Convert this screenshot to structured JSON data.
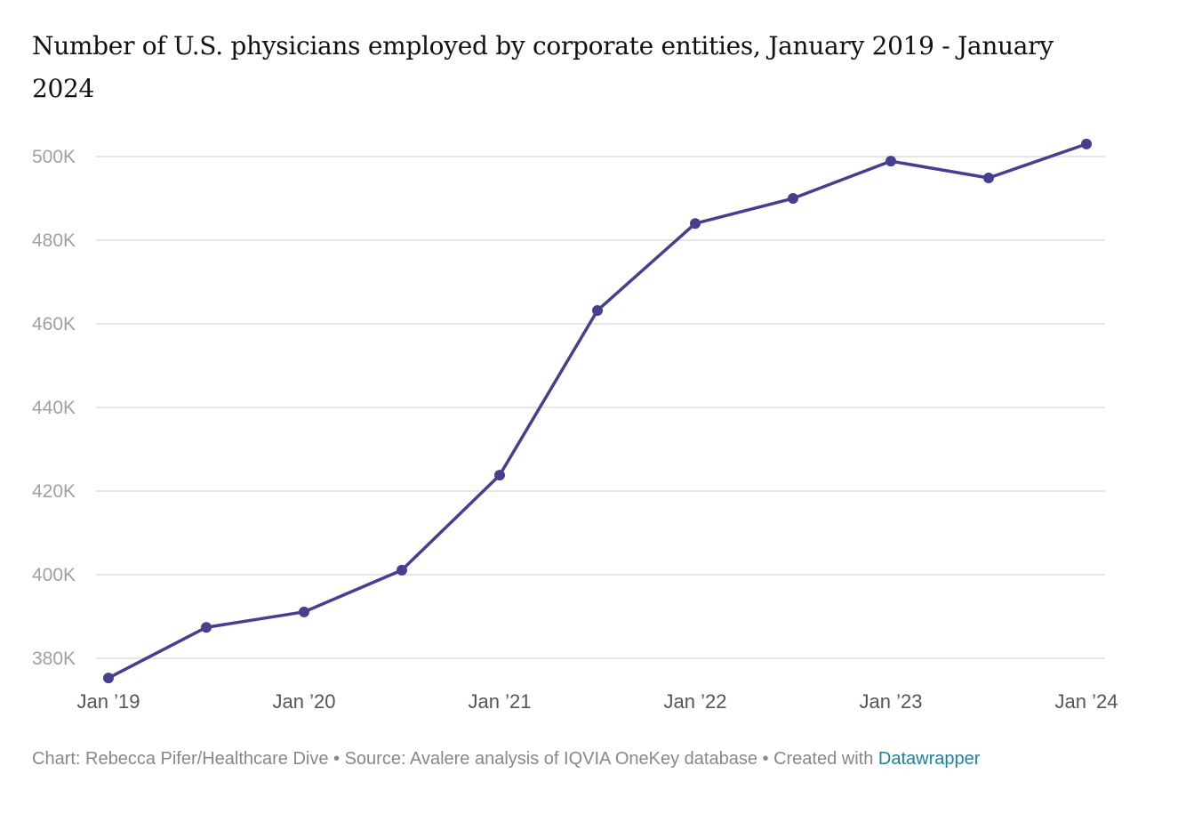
{
  "chart_data": {
    "type": "line",
    "subtitle": "Number of U.S. physicians employed by corporate entities, January 2019 - January 2024",
    "x": [
      "Jan 2019",
      "Jul 2019",
      "Jan 2020",
      "Jul 2020",
      "Jan 2021",
      "Jul 2021",
      "Jan 2022",
      "Jul 2022",
      "Jan 2023",
      "Jul 2023",
      "Jan 2024"
    ],
    "values": [
      375300,
      387400,
      391100,
      401100,
      423800,
      463200,
      484000,
      490000,
      498900,
      494900,
      503000
    ],
    "x_tick_labels": [
      "Jan ’19",
      "Jan ’20",
      "Jan ’21",
      "Jan ’22",
      "Jan ’23",
      "Jan ’24"
    ],
    "y_ticks": [
      380000,
      400000,
      420000,
      440000,
      460000,
      480000,
      500000
    ],
    "y_tick_labels": [
      "380K",
      "400K",
      "420K",
      "440K",
      "460K",
      "480K",
      "500K"
    ],
    "ylim": [
      375000,
      505000
    ],
    "grid": true,
    "line_color": "#453f8f",
    "xlabel": "",
    "ylabel": ""
  },
  "footer": {
    "credit": "Chart: Rebecca Pifer/Healthcare Dive • Source: Avalere analysis of IQVIA OneKey database • Created with ",
    "link": "Datawrapper"
  }
}
